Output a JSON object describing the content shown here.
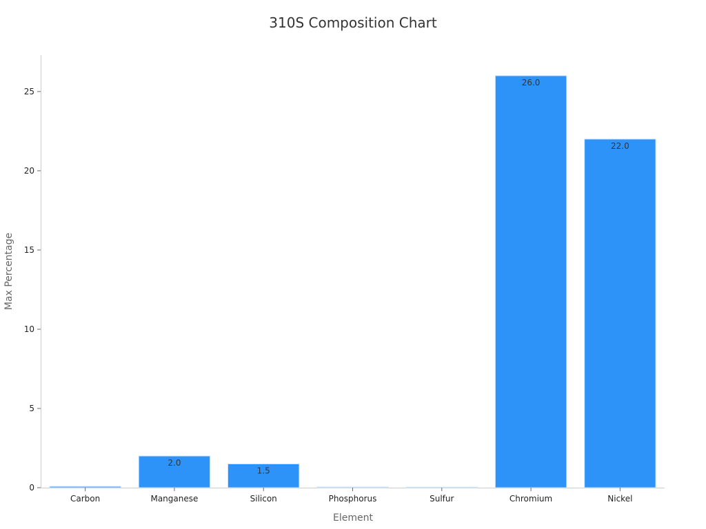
{
  "chart_data": {
    "type": "bar",
    "title": "310S Composition Chart",
    "xlabel": "Element",
    "ylabel": "Max Percentage",
    "categories": [
      "Carbon",
      "Manganese",
      "Silicon",
      "Phosphorus",
      "Sulfur",
      "Chromium",
      "Nickel"
    ],
    "values": [
      0.08,
      2.0,
      1.5,
      0.045,
      0.03,
      26.0,
      22.0
    ],
    "data_labels": [
      "",
      "2.0",
      "1.5",
      "",
      "",
      "26.0",
      "22.0"
    ],
    "ylim": [
      0,
      27.3
    ],
    "yticks": [
      0,
      5,
      10,
      15,
      20,
      25
    ],
    "bar_color": "#2e93f8",
    "bar_edge_color": "#cfe4fb",
    "grid": false,
    "legend": "none"
  }
}
